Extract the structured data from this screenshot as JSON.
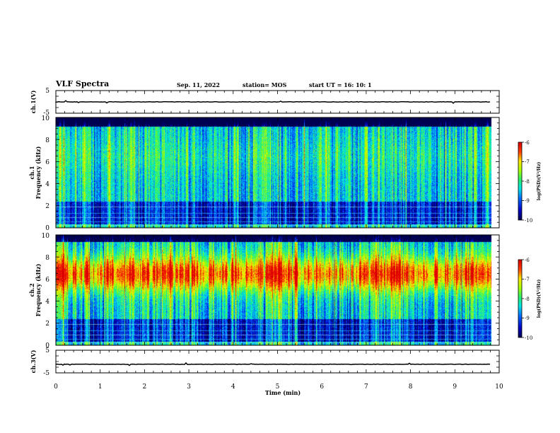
{
  "header": {
    "title": "VLF Spectra",
    "date": "Sep. 11, 2022",
    "station": "station= MOS",
    "start": "start  UT =   16: 10: 1"
  },
  "chart_data": {
    "type": "heatmap",
    "x_axis": {
      "label": "Time  (min)",
      "range": [
        0,
        10
      ],
      "ticks": [
        "0",
        "1",
        "2",
        "3",
        "4",
        "5",
        "6",
        "7",
        "8",
        "9",
        "10"
      ]
    },
    "panels": [
      {
        "id": "ch1v",
        "type": "line",
        "ylabel": "ch.1(V)",
        "ylim": [
          -5,
          5
        ],
        "ticks": [
          "5",
          "-5"
        ],
        "baseline": 0
      },
      {
        "id": "ch1",
        "type": "heatmap",
        "ylabel_main": "Frequency (kHz)",
        "ylabel_ch": "ch.1",
        "ylim": [
          0,
          10
        ],
        "ticks": [
          "0",
          "2",
          "4",
          "6",
          "8",
          "10"
        ],
        "data_end_min": 9.82,
        "band_center_khz": 6.5,
        "band_strength": 0.12,
        "high_freq_dark_above_khz": 9.2,
        "colorbar": {
          "label": "log(PSD)(V²/Hz)",
          "range": [
            -10,
            -6
          ],
          "ticks": [
            "-6",
            "-7",
            "-8",
            "-9",
            "-10"
          ]
        }
      },
      {
        "id": "ch2",
        "type": "heatmap",
        "ylabel_main": "Frequency (kHz)",
        "ylabel_ch": "ch.2",
        "ylim": [
          0,
          10
        ],
        "ticks": [
          "0",
          "2",
          "4",
          "6",
          "8",
          "10"
        ],
        "data_end_min": 9.82,
        "band_center_khz": 6.5,
        "band_strength": 0.85,
        "high_freq_dark_above_khz": 9.4,
        "colorbar": {
          "label": "log(PSD)(V²/Hz)",
          "range": [
            -10,
            -6
          ],
          "ticks": [
            "-6",
            "-7",
            "-8",
            "-9",
            "-10"
          ]
        }
      },
      {
        "id": "ch3v",
        "type": "line",
        "ylabel": "ch.3(V)",
        "ylim": [
          -5,
          5
        ],
        "ticks": [
          "5",
          "-5"
        ],
        "baseline": -1.2
      }
    ]
  }
}
